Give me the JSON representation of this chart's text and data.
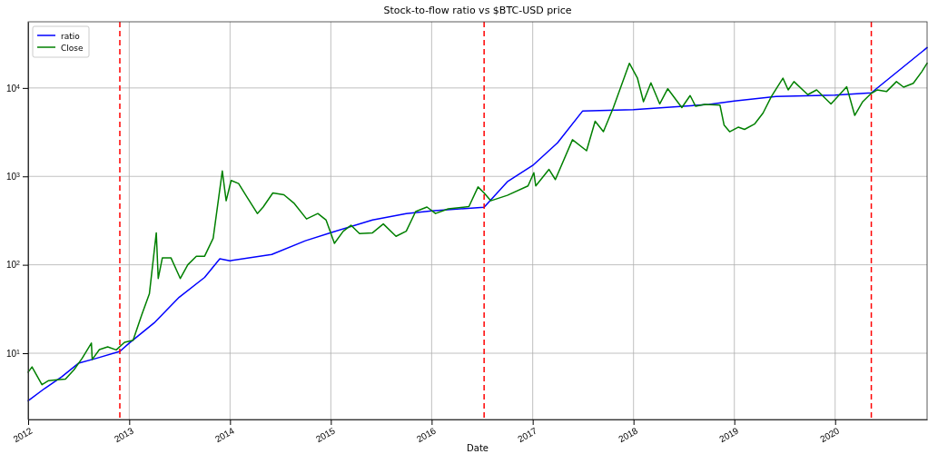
{
  "chart_data": {
    "type": "line",
    "title": "Stock-to-flow ratio vs $BTC-USD price",
    "xlabel": "Date",
    "xlim": [
      "2012-01-01",
      "2020-11-29"
    ],
    "xticks": [
      "2012",
      "2013",
      "2014",
      "2015",
      "2016",
      "2017",
      "2018",
      "2019",
      "2020"
    ],
    "ylim": [
      1.78,
      56000
    ],
    "log": true,
    "yticks": [
      {
        "value": 10,
        "label": "10$^{1}$"
      },
      {
        "value": 100,
        "label": "10$^{2}$"
      },
      {
        "value": 1000,
        "label": "10$^{3}$"
      },
      {
        "value": 10000,
        "label": "10$^{4}$"
      }
    ],
    "grid": true,
    "legend": "top left",
    "line_style": "solid",
    "marker": "none",
    "ref_lines": [
      {
        "axis": "x",
        "value": "2012-11-28",
        "color": "#ff0000",
        "line_style": "dashed"
      },
      {
        "axis": "x",
        "value": "2016-07-09",
        "color": "#ff0000",
        "line_style": "dashed"
      },
      {
        "axis": "x",
        "value": "2020-05-11",
        "color": "#ff0000",
        "line_style": "dashed"
      }
    ],
    "series": [
      {
        "name": "ratio",
        "color": "#0000ff",
        "x": [
          "2012-01-01",
          "2012-03-01",
          "2012-05-01",
          "2012-07-01",
          "2012-09-01",
          "2012-11-28",
          "2013-01-01",
          "2013-04-01",
          "2013-07-01",
          "2013-10-01",
          "2013-11-25",
          "2014-01-01",
          "2014-06-01",
          "2014-10-01",
          "2015-01-01",
          "2015-06-01",
          "2015-10-01",
          "2016-01-01",
          "2016-07-09",
          "2016-10-01",
          "2017-01-01",
          "2017-04-01",
          "2017-07-01",
          "2018-01-01",
          "2018-10-01",
          "2019-01-01",
          "2019-06-01",
          "2020-01-01",
          "2020-05-11",
          "2020-11-29"
        ],
        "values": [
          2.9,
          4.0,
          5.4,
          7.7,
          8.7,
          10.5,
          13,
          22,
          43,
          72,
          117,
          111,
          131,
          187,
          231,
          322,
          380,
          407,
          448,
          870,
          1330,
          2400,
          5500,
          5700,
          6500,
          7100,
          8000,
          8300,
          8800,
          28600
        ]
      },
      {
        "name": "Close",
        "color": "#008000",
        "x": [
          "2012-01-01",
          "2012-01-15",
          "2012-02-20",
          "2012-03-15",
          "2012-04-15",
          "2012-05-15",
          "2012-06-15",
          "2012-07-15",
          "2012-08-17",
          "2012-08-20",
          "2012-09-15",
          "2012-10-15",
          "2012-11-15",
          "2012-12-15",
          "2013-01-15",
          "2013-02-15",
          "2013-03-15",
          "2013-04-09",
          "2013-04-16",
          "2013-05-01",
          "2013-06-01",
          "2013-07-05",
          "2013-08-01",
          "2013-09-01",
          "2013-10-01",
          "2013-11-01",
          "2013-12-04",
          "2013-12-18",
          "2014-01-05",
          "2014-02-01",
          "2014-03-01",
          "2014-04-10",
          "2014-05-01",
          "2014-06-05",
          "2014-07-15",
          "2014-08-20",
          "2014-10-05",
          "2014-11-15",
          "2014-12-15",
          "2015-01-14",
          "2015-02-15",
          "2015-03-15",
          "2015-04-15",
          "2015-06-01",
          "2015-07-10",
          "2015-08-25",
          "2015-10-01",
          "2015-11-04",
          "2015-12-15",
          "2016-01-15",
          "2016-03-01",
          "2016-05-15",
          "2016-06-17",
          "2016-07-09",
          "2016-08-02",
          "2016-10-01",
          "2016-12-15",
          "2017-01-05",
          "2017-01-12",
          "2017-03-01",
          "2017-03-24",
          "2017-05-25",
          "2017-07-15",
          "2017-08-15",
          "2017-09-14",
          "2017-10-20",
          "2017-12-17",
          "2018-01-15",
          "2018-02-06",
          "2018-03-05",
          "2018-04-06",
          "2018-05-05",
          "2018-06-25",
          "2018-07-25",
          "2018-08-14",
          "2018-09-15",
          "2018-11-10",
          "2018-11-25",
          "2018-12-15",
          "2019-01-15",
          "2019-02-07",
          "2019-03-15",
          "2019-04-15",
          "2019-05-15",
          "2019-06-26",
          "2019-07-15",
          "2019-08-05",
          "2019-09-24",
          "2019-10-26",
          "2019-12-17",
          "2020-02-12",
          "2020-03-12",
          "2020-04-10",
          "2020-05-11",
          "2020-06-01",
          "2020-07-05",
          "2020-08-10",
          "2020-09-05",
          "2020-10-10",
          "2020-11-10",
          "2020-11-29"
        ],
        "values": [
          6.1,
          7.0,
          4.4,
          4.9,
          5.0,
          5.1,
          6.5,
          8.8,
          13,
          8.5,
          11,
          11.8,
          10.9,
          13.3,
          14,
          27,
          47,
          230,
          70,
          120,
          120,
          70,
          100,
          125,
          125,
          200,
          1150,
          530,
          900,
          830,
          600,
          380,
          450,
          650,
          620,
          500,
          330,
          380,
          320,
          175,
          240,
          280,
          225,
          230,
          290,
          210,
          240,
          400,
          450,
          380,
          430,
          455,
          760,
          650,
          530,
          610,
          780,
          1100,
          780,
          1200,
          920,
          2600,
          1950,
          4200,
          3200,
          6000,
          19000,
          13000,
          7000,
          11400,
          6600,
          9800,
          6000,
          8200,
          6200,
          6500,
          6400,
          3800,
          3200,
          3600,
          3400,
          3900,
          5200,
          8000,
          12900,
          9500,
          11800,
          8400,
          9500,
          6600,
          10300,
          4900,
          7000,
          8700,
          9500,
          9100,
          11800,
          10200,
          11300,
          15300,
          19000
        ]
      }
    ]
  }
}
